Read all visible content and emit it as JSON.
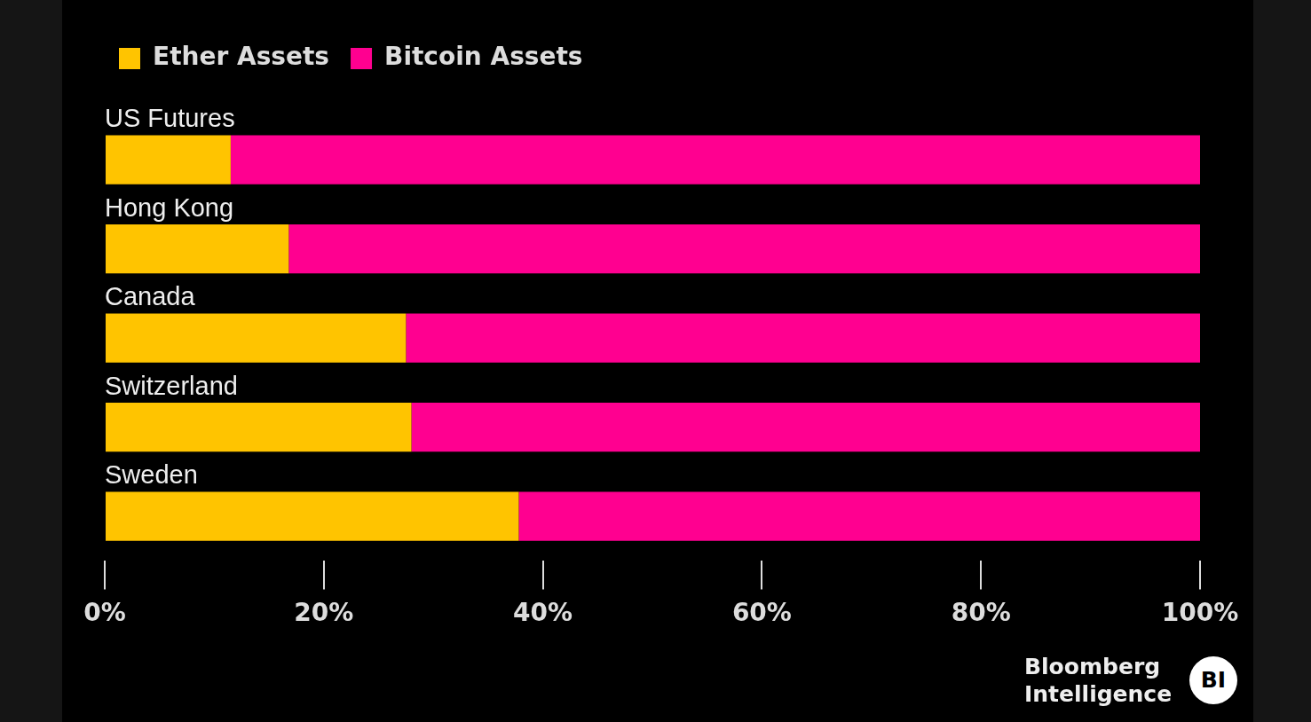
{
  "chart_data": {
    "type": "bar",
    "orientation": "horizontal",
    "stacked": true,
    "categories": [
      "US Futures",
      "Hong Kong",
      "Canada",
      "Switzerland",
      "Sweden"
    ],
    "series": [
      {
        "name": "Ether Assets",
        "color": "#ffc400",
        "values": [
          11.5,
          16.8,
          27.5,
          28.0,
          37.8
        ]
      },
      {
        "name": "Bitcoin Assets",
        "color": "#ff0090",
        "values": [
          88.5,
          83.2,
          72.5,
          72.0,
          62.2
        ]
      }
    ],
    "xlim": [
      0,
      100
    ],
    "xticks": [
      {
        "value": 0,
        "label": "0%"
      },
      {
        "value": 20,
        "label": "20%"
      },
      {
        "value": 40,
        "label": "40%"
      },
      {
        "value": 60,
        "label": "60%"
      },
      {
        "value": 80,
        "label": "80%"
      },
      {
        "value": 100,
        "label": "100%"
      }
    ],
    "grid": false,
    "legend": "top-left",
    "data_labels": false,
    "source": "Bloomberg Intelligence",
    "logo": "BI"
  }
}
